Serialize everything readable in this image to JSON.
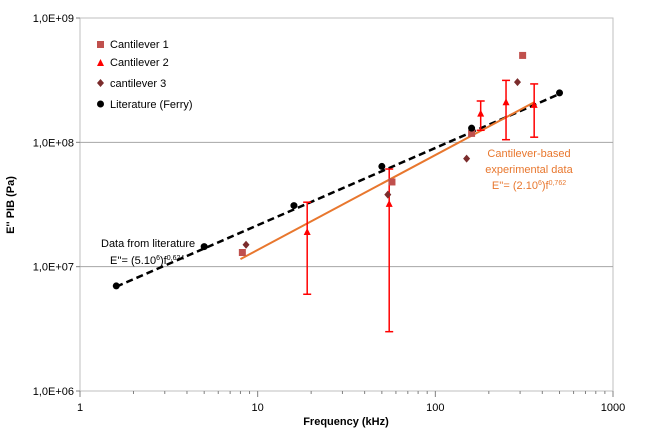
{
  "chart_data": {
    "type": "scatter",
    "xlabel": "Frequency (kHz)",
    "ylabel": "E'' PIB (Pa)",
    "x_scale": "log",
    "y_scale": "log",
    "xlim": [
      1,
      1000
    ],
    "ylim": [
      1000000,
      1000000000
    ],
    "x_ticks": [
      "1",
      "10",
      "100",
      "1000"
    ],
    "y_ticks": [
      "1,0E+06",
      "1,0E+07",
      "1,0E+08",
      "1,0E+09"
    ],
    "grid": "horizontal",
    "legend_position": "top-left",
    "colors": {
      "cantilever1": "#c0504d",
      "cantilever2": "#ff0000",
      "cantilever3": "#7b2c2c",
      "literature": "#000000",
      "experimental_fit": "#e8772e",
      "literature_fit": "#000000"
    },
    "series": [
      {
        "name": "Cantilever 1",
        "marker": "square",
        "points": [
          {
            "x": 8.2,
            "y": 13000000
          },
          {
            "x": 57,
            "y": 48000000
          },
          {
            "x": 160,
            "y": 118000000
          },
          {
            "x": 310,
            "y": 500000000
          }
        ]
      },
      {
        "name": "Cantilever 2",
        "marker": "triangle",
        "points": [
          {
            "x": 19,
            "y": 19000000,
            "ylow": 6000000,
            "yhigh": 33000000
          },
          {
            "x": 55,
            "y": 32000000,
            "ylow": 3000000,
            "yhigh": 61000000
          },
          {
            "x": 180,
            "y": 170000000,
            "ylow": 125000000,
            "yhigh": 215000000
          },
          {
            "x": 250,
            "y": 210000000,
            "ylow": 105000000,
            "yhigh": 315000000
          },
          {
            "x": 360,
            "y": 200000000,
            "ylow": 110000000,
            "yhigh": 295000000
          }
        ]
      },
      {
        "name": "cantilever 3",
        "marker": "diamond",
        "points": [
          {
            "x": 8.6,
            "y": 15000000
          },
          {
            "x": 54,
            "y": 38000000
          },
          {
            "x": 150,
            "y": 74000000
          },
          {
            "x": 290,
            "y": 305000000
          }
        ]
      },
      {
        "name": "Literature (Ferry)",
        "marker": "circle",
        "points": [
          {
            "x": 1.6,
            "y": 7000000
          },
          {
            "x": 5,
            "y": 14500000
          },
          {
            "x": 16,
            "y": 31000000
          },
          {
            "x": 50,
            "y": 64000000
          },
          {
            "x": 160,
            "y": 130000000
          },
          {
            "x": 500,
            "y": 250000000
          }
        ]
      }
    ],
    "fits": [
      {
        "series": "Data from literature",
        "style": "dashed",
        "color": "#000000",
        "x": [
          1.6,
          500
        ],
        "y": [
          6900000,
          245000000
        ]
      },
      {
        "series": "Cantilever-based experimental data",
        "style": "solid",
        "color": "#e8772e",
        "x": [
          8,
          360
        ],
        "y": [
          11500000,
          210000000
        ]
      }
    ],
    "annotations": {
      "literature": {
        "line1": "Data from literature",
        "eq_prefix": "E''= (5.10",
        "eq_exp1": "6",
        "eq_mid": ")f",
        "eq_exp2": "0,624"
      },
      "experimental": {
        "line1": "Cantilever-based",
        "line2": "experimental data",
        "eq_prefix": "E''= (2.10",
        "eq_exp1": "6",
        "eq_mid": ")f",
        "eq_exp2": "0,762"
      }
    }
  }
}
